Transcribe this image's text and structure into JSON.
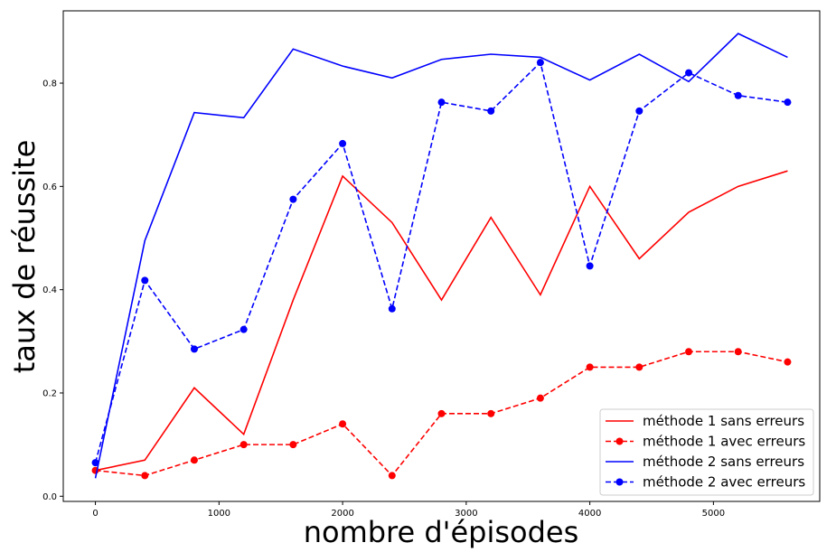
{
  "chart_data": {
    "type": "line",
    "title": "",
    "xlabel": "nombre d'épisodes",
    "ylabel": "taux de réussite",
    "xlim": [
      -260,
      5860
    ],
    "ylim": [
      -0.01,
      0.94
    ],
    "xticks": [
      0,
      1000,
      2000,
      3000,
      4000,
      5000
    ],
    "yticks": [
      0.0,
      0.2,
      0.4,
      0.6,
      0.8
    ],
    "grid": false,
    "legend_position": "bottom-right",
    "x": [
      0,
      400,
      800,
      1200,
      1600,
      2000,
      2400,
      2800,
      3200,
      3600,
      4000,
      4400,
      4800,
      5200,
      5600
    ],
    "series": [
      {
        "name": "méthode 1 sans erreurs",
        "color": "#ff0000",
        "linestyle": "solid",
        "marker": "none",
        "values": [
          0.05,
          0.07,
          0.21,
          0.12,
          0.38,
          0.62,
          0.53,
          0.38,
          0.54,
          0.39,
          0.6,
          0.46,
          0.55,
          0.6,
          0.63
        ]
      },
      {
        "name": "méthode 1 avec erreurs",
        "color": "#ff0000",
        "linestyle": "dashed",
        "marker": "circle",
        "values": [
          0.05,
          0.04,
          0.07,
          0.1,
          0.1,
          0.14,
          0.04,
          0.16,
          0.16,
          0.19,
          0.25,
          0.25,
          0.28,
          0.28,
          0.26
        ]
      },
      {
        "name": "méthode 2 sans erreurs",
        "color": "#0000ff",
        "linestyle": "solid",
        "marker": "none",
        "values": [
          0.035,
          0.495,
          0.743,
          0.733,
          0.866,
          0.833,
          0.81,
          0.846,
          0.856,
          0.85,
          0.806,
          0.856,
          0.803,
          0.896,
          0.85
        ]
      },
      {
        "name": "méthode 2 avec erreurs",
        "color": "#0000ff",
        "linestyle": "dashed",
        "marker": "circle",
        "values": [
          0.065,
          0.418,
          0.285,
          0.323,
          0.575,
          0.683,
          0.363,
          0.763,
          0.746,
          0.84,
          0.446,
          0.746,
          0.82,
          0.776,
          0.763
        ]
      }
    ]
  }
}
